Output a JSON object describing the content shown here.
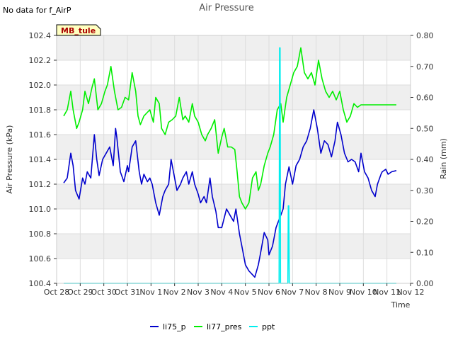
{
  "chart_data": {
    "type": "line",
    "title": "Air Pressure",
    "no_data_note": "No data for f_AirP",
    "station_label": "MB_tule",
    "xlabel": "Time",
    "ylabel": "Air Pressure (kPa)",
    "y2label": "Rain (mm)",
    "xlim": [
      0,
      15
    ],
    "ylim": [
      100.4,
      102.4
    ],
    "y2lim": [
      0.0,
      0.8
    ],
    "x_ticks": [
      0,
      1,
      2,
      3,
      4,
      5,
      6,
      7,
      8,
      9,
      10,
      11,
      12,
      13,
      14,
      15
    ],
    "x_tick_labels": [
      "Oct 28",
      "Oct 29",
      "Oct 30",
      "Oct 31",
      "Nov 1",
      "Nov 2",
      "Nov 3",
      "Nov 4",
      "Nov 5",
      "Nov 6",
      "Nov 7",
      "Nov 8",
      "Nov 9",
      "Nov 10",
      "Nov 11",
      "Nov 12"
    ],
    "y_ticks": [
      100.4,
      100.6,
      100.8,
      101.0,
      101.2,
      101.4,
      101.6,
      101.8,
      102.0,
      102.2,
      102.4
    ],
    "y_tick_labels": [
      "100.4",
      "100.6",
      "100.8",
      "101.0",
      "101.2",
      "101.4",
      "101.6",
      "101.8",
      "102.0",
      "102.2",
      "102.4"
    ],
    "y2_ticks": [
      0.0,
      0.1,
      0.2,
      0.3,
      0.4,
      0.5,
      0.6,
      0.7,
      0.8
    ],
    "y2_tick_labels": [
      "0.00",
      "0.10",
      "0.20",
      "0.30",
      "0.40",
      "0.50",
      "0.60",
      "0.70",
      "0.80"
    ],
    "grid_bands": true,
    "legend_position": "bottom-center",
    "series": [
      {
        "name": "li75_p",
        "color": "#0000cc",
        "axis": "left",
        "x": [
          0.3,
          0.45,
          0.6,
          0.7,
          0.8,
          0.95,
          1.1,
          1.2,
          1.3,
          1.45,
          1.6,
          1.7,
          1.8,
          1.95,
          2.1,
          2.25,
          2.4,
          2.5,
          2.55,
          2.7,
          2.85,
          3.0,
          3.05,
          3.2,
          3.35,
          3.5,
          3.6,
          3.7,
          3.85,
          3.95,
          4.05,
          4.2,
          4.35,
          4.5,
          4.6,
          4.75,
          4.85,
          5.0,
          5.1,
          5.25,
          5.35,
          5.5,
          5.6,
          5.75,
          5.85,
          6.0,
          6.1,
          6.25,
          6.35,
          6.5,
          6.6,
          6.75,
          6.85,
          7.0,
          7.2,
          7.35,
          7.5,
          7.6,
          7.75,
          7.85,
          8.0,
          8.15,
          8.3,
          8.4,
          8.55,
          8.65,
          8.8,
          8.95,
          9.0,
          9.15,
          9.3,
          9.4,
          9.5,
          9.6,
          9.7,
          9.85,
          10.0,
          10.15,
          10.3,
          10.45,
          10.6,
          10.75,
          10.9,
          11.05,
          11.2,
          11.35,
          11.5,
          11.65,
          11.8,
          11.9,
          12.05,
          12.2,
          12.35,
          12.5,
          12.65,
          12.8,
          12.9,
          13.05,
          13.2,
          13.35,
          13.5,
          13.6,
          13.75,
          13.8,
          13.95,
          14.05,
          14.2,
          14.4
        ],
        "y": [
          101.21,
          101.25,
          101.45,
          101.35,
          101.15,
          101.08,
          101.25,
          101.2,
          101.3,
          101.25,
          101.6,
          101.4,
          101.27,
          101.4,
          101.45,
          101.5,
          101.35,
          101.65,
          101.58,
          101.3,
          101.22,
          101.35,
          101.3,
          101.5,
          101.55,
          101.3,
          101.2,
          101.28,
          101.22,
          101.25,
          101.2,
          101.05,
          100.95,
          101.1,
          101.15,
          101.2,
          101.4,
          101.25,
          101.15,
          101.2,
          101.25,
          101.3,
          101.2,
          101.3,
          101.2,
          101.12,
          101.05,
          101.1,
          101.05,
          101.25,
          101.1,
          100.98,
          100.85,
          100.85,
          101.0,
          100.95,
          100.9,
          101.0,
          100.8,
          100.7,
          100.55,
          100.5,
          100.47,
          100.45,
          100.55,
          100.65,
          100.81,
          100.75,
          100.63,
          100.7,
          100.85,
          100.9,
          100.95,
          101.0,
          101.2,
          101.34,
          101.2,
          101.35,
          101.4,
          101.5,
          101.55,
          101.65,
          101.8,
          101.65,
          101.45,
          101.55,
          101.52,
          101.42,
          101.55,
          101.7,
          101.6,
          101.45,
          101.38,
          101.4,
          101.38,
          101.3,
          101.45,
          101.3,
          101.25,
          101.15,
          101.1,
          101.2,
          101.28,
          101.3,
          101.32,
          101.28,
          101.3,
          101.31
        ],
        "x_end": 14.4
      },
      {
        "name": "li77_pres",
        "color": "#00ee00",
        "axis": "left",
        "x": [
          0.3,
          0.45,
          0.6,
          0.7,
          0.85,
          0.95,
          1.1,
          1.2,
          1.35,
          1.5,
          1.6,
          1.75,
          1.9,
          2.05,
          2.15,
          2.3,
          2.45,
          2.6,
          2.75,
          2.9,
          3.05,
          3.2,
          3.35,
          3.45,
          3.55,
          3.7,
          3.85,
          3.95,
          4.1,
          4.2,
          4.35,
          4.45,
          4.6,
          4.75,
          4.9,
          5.05,
          5.2,
          5.35,
          5.45,
          5.6,
          5.75,
          5.85,
          6.0,
          6.15,
          6.3,
          6.4,
          6.55,
          6.7,
          6.85,
          7.0,
          7.1,
          7.25,
          7.4,
          7.55,
          7.65,
          7.75,
          7.85,
          8.0,
          8.15,
          8.3,
          8.45,
          8.55,
          8.65,
          8.8,
          8.95,
          9.05,
          9.2,
          9.35,
          9.5,
          9.6,
          9.75,
          9.9,
          10.05,
          10.2,
          10.35,
          10.5,
          10.65,
          10.8,
          10.95,
          11.1,
          11.25,
          11.4,
          11.55,
          11.7,
          11.85,
          12.0,
          12.15,
          12.3,
          12.45,
          12.6,
          12.75,
          12.9,
          13.05,
          13.2,
          13.35,
          13.5,
          13.65,
          13.8,
          13.9,
          14.05,
          14.2,
          14.35,
          14.4
        ],
        "y": [
          101.75,
          101.8,
          101.95,
          101.8,
          101.65,
          101.7,
          101.8,
          101.95,
          101.85,
          101.98,
          102.05,
          101.8,
          101.85,
          101.95,
          102.0,
          102.15,
          101.95,
          101.8,
          101.82,
          101.9,
          101.88,
          102.1,
          101.95,
          101.75,
          101.68,
          101.75,
          101.78,
          101.8,
          101.7,
          101.9,
          101.85,
          101.65,
          101.6,
          101.7,
          101.72,
          101.75,
          101.9,
          101.72,
          101.75,
          101.7,
          101.85,
          101.75,
          101.7,
          101.6,
          101.55,
          101.6,
          101.65,
          101.72,
          101.45,
          101.58,
          101.65,
          101.5,
          101.5,
          101.48,
          101.3,
          101.1,
          101.05,
          101.0,
          101.05,
          101.25,
          101.3,
          101.15,
          101.2,
          101.35,
          101.45,
          101.5,
          101.6,
          101.8,
          101.85,
          101.7,
          101.9,
          102.0,
          102.1,
          102.15,
          102.3,
          102.1,
          102.05,
          102.1,
          102.0,
          102.2,
          102.05,
          101.95,
          101.9,
          101.95,
          101.88,
          101.95,
          101.8,
          101.7,
          101.75,
          101.85,
          101.82,
          101.84,
          101.84,
          101.84,
          101.84,
          101.84,
          101.84,
          101.84,
          101.84,
          101.84,
          101.84,
          101.84,
          101.84
        ]
      },
      {
        "name": "ppt",
        "color": "#00eeee",
        "axis": "right",
        "x": [
          0.3,
          9.43,
          9.45,
          9.47,
          9.49,
          9.8,
          9.82,
          9.84,
          9.86,
          14.4
        ],
        "y": [
          0,
          0,
          0.76,
          0.76,
          0,
          0,
          0.25,
          0.25,
          0,
          0
        ]
      }
    ]
  }
}
